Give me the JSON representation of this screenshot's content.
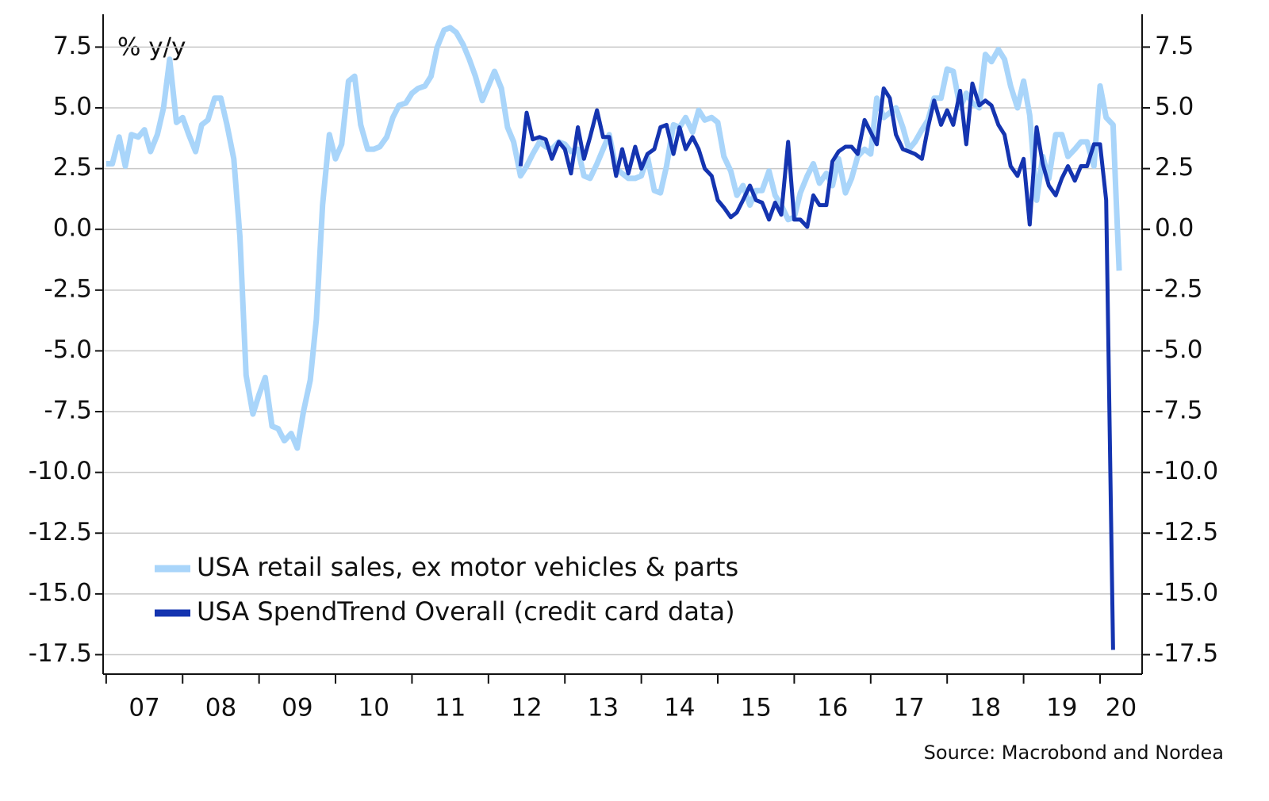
{
  "chart_data": {
    "type": "line",
    "y_label": "% y/y",
    "source": "Source: Macrobond and Nordea",
    "xlim": [
      2006.96,
      2020.55
    ],
    "xticks": [
      {
        "value": 2007,
        "label": "07"
      },
      {
        "value": 2008,
        "label": "08"
      },
      {
        "value": 2009,
        "label": "09"
      },
      {
        "value": 2010,
        "label": "10"
      },
      {
        "value": 2011,
        "label": "11"
      },
      {
        "value": 2012,
        "label": "12"
      },
      {
        "value": 2013,
        "label": "13"
      },
      {
        "value": 2014,
        "label": "14"
      },
      {
        "value": 2015,
        "label": "15"
      },
      {
        "value": 2016,
        "label": "16"
      },
      {
        "value": 2017,
        "label": "17"
      },
      {
        "value": 2018,
        "label": "18"
      },
      {
        "value": 2019,
        "label": "19"
      },
      {
        "value": 2020,
        "label": "20"
      }
    ],
    "ylim": [
      -18.3,
      8.85
    ],
    "yticks": [
      7.5,
      {
        "value": 5,
        "label": "5.0"
      },
      2.5,
      {
        "value": 0,
        "label": "0.0"
      },
      -2.5,
      {
        "value": -5,
        "label": "-5.0"
      },
      -7.5,
      {
        "value": -10,
        "label": "-10.0"
      },
      -12.5,
      {
        "value": -15,
        "label": "-15.0"
      },
      -17.5
    ],
    "grid": true,
    "legend": "lower left",
    "x": [
      2007.0,
      2007.08,
      2007.17,
      2007.25,
      2007.33,
      2007.42,
      2007.5,
      2007.58,
      2007.67,
      2007.75,
      2007.83,
      2007.92,
      2008.0,
      2008.08,
      2008.17,
      2008.25,
      2008.33,
      2008.42,
      2008.5,
      2008.58,
      2008.67,
      2008.75,
      2008.83,
      2008.92,
      2009.0,
      2009.08,
      2009.17,
      2009.25,
      2009.33,
      2009.42,
      2009.5,
      2009.58,
      2009.67,
      2009.75,
      2009.83,
      2009.92,
      2010.0,
      2010.08,
      2010.17,
      2010.25,
      2010.33,
      2010.42,
      2010.5,
      2010.58,
      2010.67,
      2010.75,
      2010.83,
      2010.92,
      2011.0,
      2011.08,
      2011.17,
      2011.25,
      2011.33,
      2011.42,
      2011.5,
      2011.58,
      2011.67,
      2011.75,
      2011.83,
      2011.92,
      2012.0,
      2012.08,
      2012.17,
      2012.25,
      2012.33,
      2012.42,
      2012.5,
      2012.58,
      2012.67,
      2012.75,
      2012.83,
      2012.92,
      2013.0,
      2013.08,
      2013.17,
      2013.25,
      2013.33,
      2013.42,
      2013.5,
      2013.58,
      2013.67,
      2013.75,
      2013.83,
      2013.92,
      2014.0,
      2014.08,
      2014.17,
      2014.25,
      2014.33,
      2014.42,
      2014.5,
      2014.58,
      2014.67,
      2014.75,
      2014.83,
      2014.92,
      2015.0,
      2015.08,
      2015.17,
      2015.25,
      2015.33,
      2015.42,
      2015.5,
      2015.58,
      2015.67,
      2015.75,
      2015.83,
      2015.92,
      2016.0,
      2016.08,
      2016.17,
      2016.25,
      2016.33,
      2016.42,
      2016.5,
      2016.58,
      2016.67,
      2016.75,
      2016.83,
      2016.92,
      2017.0,
      2017.08,
      2017.17,
      2017.25,
      2017.33,
      2017.42,
      2017.5,
      2017.58,
      2017.67,
      2017.75,
      2017.83,
      2017.92,
      2018.0,
      2018.08,
      2018.17,
      2018.25,
      2018.33,
      2018.42,
      2018.5,
      2018.58,
      2018.67,
      2018.75,
      2018.83,
      2018.92,
      2019.0,
      2019.08,
      2019.17,
      2019.25,
      2019.33,
      2019.42,
      2019.5,
      2019.58,
      2019.67,
      2019.75,
      2019.83,
      2019.92,
      2020.0,
      2020.08,
      2020.17,
      2020.25
    ],
    "series": [
      {
        "name": "USA retail sales, ex motor vehicles & parts",
        "color": "#a9d5fa",
        "width": 7,
        "values": [
          2.7,
          2.7,
          3.8,
          2.6,
          3.9,
          3.8,
          4.1,
          3.2,
          3.9,
          5.0,
          7.0,
          4.4,
          4.6,
          3.9,
          3.2,
          4.3,
          4.5,
          5.4,
          5.4,
          4.3,
          2.9,
          -0.3,
          -6.0,
          -7.6,
          -6.8,
          -6.1,
          -8.1,
          -8.2,
          -8.7,
          -8.4,
          -9.0,
          -7.5,
          -6.2,
          -3.7,
          1.0,
          3.9,
          2.9,
          3.5,
          6.1,
          6.3,
          4.3,
          3.3,
          3.3,
          3.4,
          3.8,
          4.6,
          5.1,
          5.2,
          5.6,
          5.8,
          5.9,
          6.3,
          7.5,
          8.2,
          8.3,
          8.1,
          7.6,
          7.0,
          6.3,
          5.3,
          5.9,
          6.5,
          5.8,
          4.2,
          3.6,
          2.2,
          2.6,
          3.1,
          3.6,
          3.4,
          3.3,
          3.6,
          3.5,
          3.2,
          3.3,
          2.2,
          2.1,
          2.7,
          3.3,
          3.9,
          2.5,
          2.3,
          2.1,
          2.1,
          2.2,
          3.0,
          1.6,
          1.5,
          2.6,
          4.3,
          4.2,
          4.6,
          4.0,
          4.9,
          4.5,
          4.6,
          4.4,
          3.0,
          2.4,
          1.4,
          1.8,
          1.0,
          1.6,
          1.6,
          2.4,
          1.4,
          1.0,
          0.4,
          0.5,
          1.5,
          2.2,
          2.7,
          1.9,
          2.3,
          1.8,
          2.9,
          1.5,
          2.1,
          3.0,
          3.3,
          3.1,
          5.4,
          4.6,
          4.8,
          5.0,
          4.2,
          3.3,
          3.6,
          4.1,
          4.5,
          5.4,
          5.4,
          6.6,
          6.5,
          5.0,
          5.6,
          5.2,
          5.0,
          7.2,
          6.9,
          7.4,
          7.0,
          5.9,
          5.0,
          6.1,
          4.7,
          1.2,
          3.0,
          2.1,
          3.9,
          3.9,
          3.0,
          3.3,
          3.6,
          3.6,
          2.6,
          5.9,
          4.6,
          4.3,
          -1.7
        ]
      },
      {
        "name": "USA SpendTrend Overall (credit card data)",
        "color": "#1434b0",
        "width": 5,
        "values": [
          null,
          null,
          null,
          null,
          null,
          null,
          null,
          null,
          null,
          null,
          null,
          null,
          null,
          null,
          null,
          null,
          null,
          null,
          null,
          null,
          null,
          null,
          null,
          null,
          null,
          null,
          null,
          null,
          null,
          null,
          null,
          null,
          null,
          null,
          null,
          null,
          null,
          null,
          null,
          null,
          null,
          null,
          null,
          null,
          null,
          null,
          null,
          null,
          null,
          null,
          null,
          null,
          null,
          null,
          null,
          null,
          null,
          null,
          null,
          null,
          null,
          null,
          null,
          null,
          null,
          2.6,
          4.8,
          3.7,
          3.8,
          3.7,
          2.9,
          3.6,
          3.3,
          2.3,
          4.2,
          2.9,
          3.8,
          4.9,
          3.8,
          3.8,
          2.2,
          3.3,
          2.3,
          3.4,
          2.5,
          3.1,
          3.3,
          4.2,
          4.3,
          3.1,
          4.2,
          3.3,
          3.8,
          3.3,
          2.5,
          2.2,
          1.2,
          0.9,
          0.5,
          0.7,
          1.2,
          1.8,
          1.2,
          1.1,
          0.4,
          1.1,
          0.6,
          3.6,
          0.4,
          0.4,
          0.1,
          1.4,
          1.0,
          1.0,
          2.8,
          3.2,
          3.4,
          3.4,
          3.1,
          4.5,
          4.0,
          3.5,
          5.8,
          5.4,
          3.9,
          3.3,
          3.2,
          3.1,
          2.9,
          4.2,
          5.3,
          4.3,
          4.9,
          4.3,
          5.7,
          3.5,
          6.0,
          5.1,
          5.3,
          5.1,
          4.3,
          3.9,
          2.6,
          2.2,
          2.9,
          0.2,
          4.2,
          2.7,
          1.8,
          1.4,
          2.1,
          2.6,
          2.0,
          2.6,
          2.6,
          3.5,
          3.5,
          1.2,
          -17.3,
          null
        ]
      }
    ]
  }
}
